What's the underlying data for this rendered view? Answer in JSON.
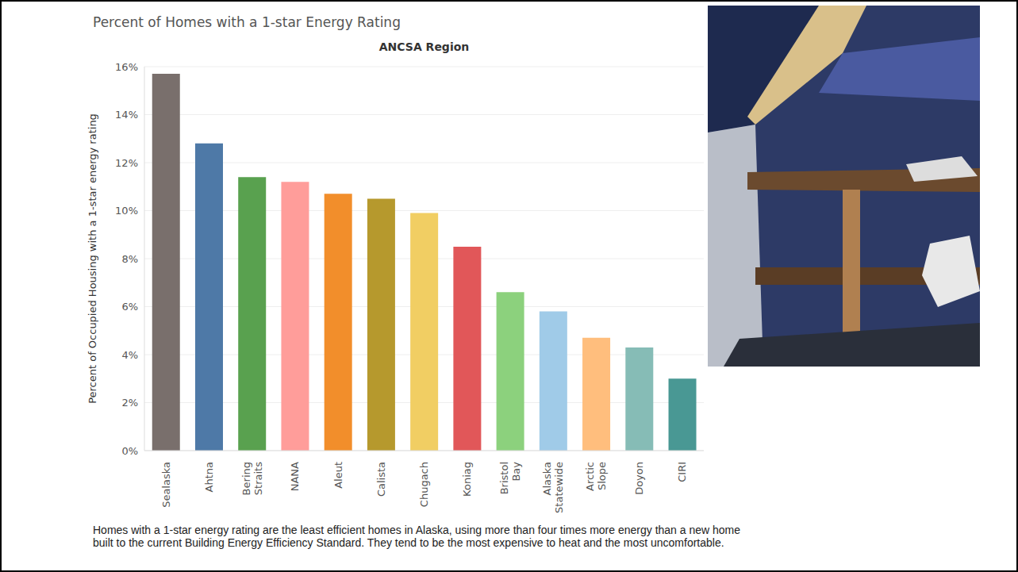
{
  "chart_data": {
    "type": "bar",
    "title": "Percent of Homes with a 1-star Energy Rating",
    "subtitle": "ANCSA Region",
    "y_label": "Percent of Occupied Housing with a 1-star energy rating",
    "note": "Homes with a 1-star energy rating are the least efficient homes in Alaska, using more than four times more energy than a new home built to the current Building Energy Efficiency Standard.  They tend to be the most expensive to heat and the most uncomfortable.",
    "categories": [
      "Sealaska",
      "Ahtna",
      "Bering Straits",
      "NANA",
      "Aleut",
      "Calista",
      "Chugach",
      "Koniag",
      "Bristol Bay",
      "Alaska Statewide",
      "Arctic Slope",
      "Doyon",
      "CIRI"
    ],
    "values": [
      15.7,
      12.8,
      11.4,
      11.2,
      10.7,
      10.5,
      9.9,
      8.5,
      6.6,
      5.8,
      4.7,
      4.3,
      3.0
    ],
    "colors": [
      "#796f6c",
      "#4e79a7",
      "#59a14f",
      "#ff9d9a",
      "#f28e2b",
      "#b6992d",
      "#f1ce63",
      "#e15759",
      "#8cd17d",
      "#a0cbe8",
      "#ffbe7d",
      "#86bcb6",
      "#499894"
    ],
    "ylim": [
      0,
      16
    ],
    "yticks": [
      {
        "value": 0,
        "label": "0%"
      },
      {
        "value": 2,
        "label": "2%"
      },
      {
        "value": 4,
        "label": "4%"
      },
      {
        "value": 6,
        "label": "6%"
      },
      {
        "value": 8,
        "label": "8%"
      },
      {
        "value": 10,
        "label": "10%"
      },
      {
        "value": 12,
        "label": "12%"
      },
      {
        "value": 14,
        "label": "14%"
      },
      {
        "value": 16,
        "label": "16%"
      }
    ],
    "grid": true,
    "data_labels": false
  }
}
